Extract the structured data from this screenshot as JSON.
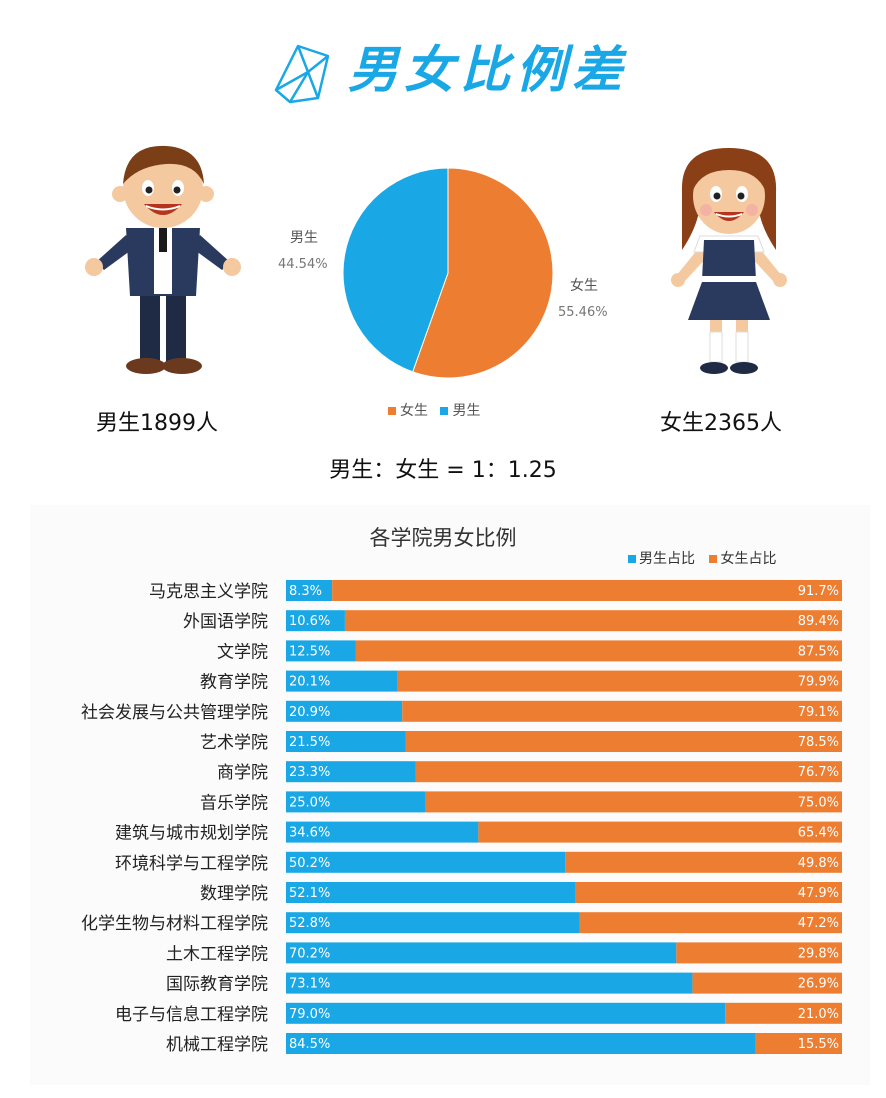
{
  "header": {
    "title": "男女比例差",
    "logo_icon": "origami-crystal-icon"
  },
  "boy": {
    "count_label": "男生1899人",
    "illustration": "boy-cartoon-icon"
  },
  "girl": {
    "count_label": "女生2365人",
    "illustration": "girl-cartoon-icon"
  },
  "ratio_text": "男生：女生 =  1：1.25",
  "colors": {
    "male": "#1aa7e6",
    "female": "#ed7d31",
    "accent": "#1aa7e6"
  },
  "chart_data": [
    {
      "type": "pie",
      "slices": [
        {
          "name": "女生",
          "value": 55.46,
          "label": "55.46%"
        },
        {
          "name": "男生",
          "value": 44.54,
          "label": "44.54%"
        }
      ],
      "legend": [
        "女生",
        "男生"
      ],
      "legend_position": "bottom"
    },
    {
      "type": "bar",
      "orientation": "horizontal",
      "stacked": "100%",
      "title": "各学院男女比例",
      "legend_position": "top-right",
      "categories": [
        "马克思主义学院",
        "外国语学院",
        "文学院",
        "教育学院",
        "社会发展与公共管理学院",
        "艺术学院",
        "商学院",
        "音乐学院",
        "建筑与城市规划学院",
        "环境科学与工程学院",
        "数理学院",
        "化学生物与材料工程学院",
        "土木工程学院",
        "国际教育学院",
        "电子与信息工程学院",
        "机械工程学院"
      ],
      "series": [
        {
          "name": "男生占比",
          "values": [
            8.3,
            10.6,
            12.5,
            20.1,
            20.9,
            21.5,
            23.3,
            25.0,
            34.6,
            50.2,
            52.1,
            52.8,
            70.2,
            73.1,
            79.0,
            84.5
          ],
          "labels": [
            "8.3%",
            "10.6%",
            "12.5%",
            "20.1%",
            "20.9%",
            "21.5%",
            "23.3%",
            "25.0%",
            "34.6%",
            "50.2%",
            "52.1%",
            "52.8%",
            "70.2%",
            "73.1%",
            "79.0%",
            "84.5%"
          ]
        },
        {
          "name": "女生占比",
          "values": [
            91.7,
            89.4,
            87.5,
            79.9,
            79.1,
            78.5,
            76.7,
            75.0,
            65.4,
            49.8,
            47.9,
            47.2,
            29.8,
            26.9,
            21.0,
            15.5
          ],
          "labels": [
            "91.7%",
            "89.4%",
            "87.5%",
            "79.9%",
            "79.1%",
            "78.5%",
            "76.7%",
            "75.0%",
            "65.4%",
            "49.8%",
            "47.9%",
            "47.2%",
            "29.8%",
            "26.9%",
            "21.0%",
            "15.5%"
          ]
        }
      ],
      "xlim": [
        0,
        100
      ]
    }
  ]
}
